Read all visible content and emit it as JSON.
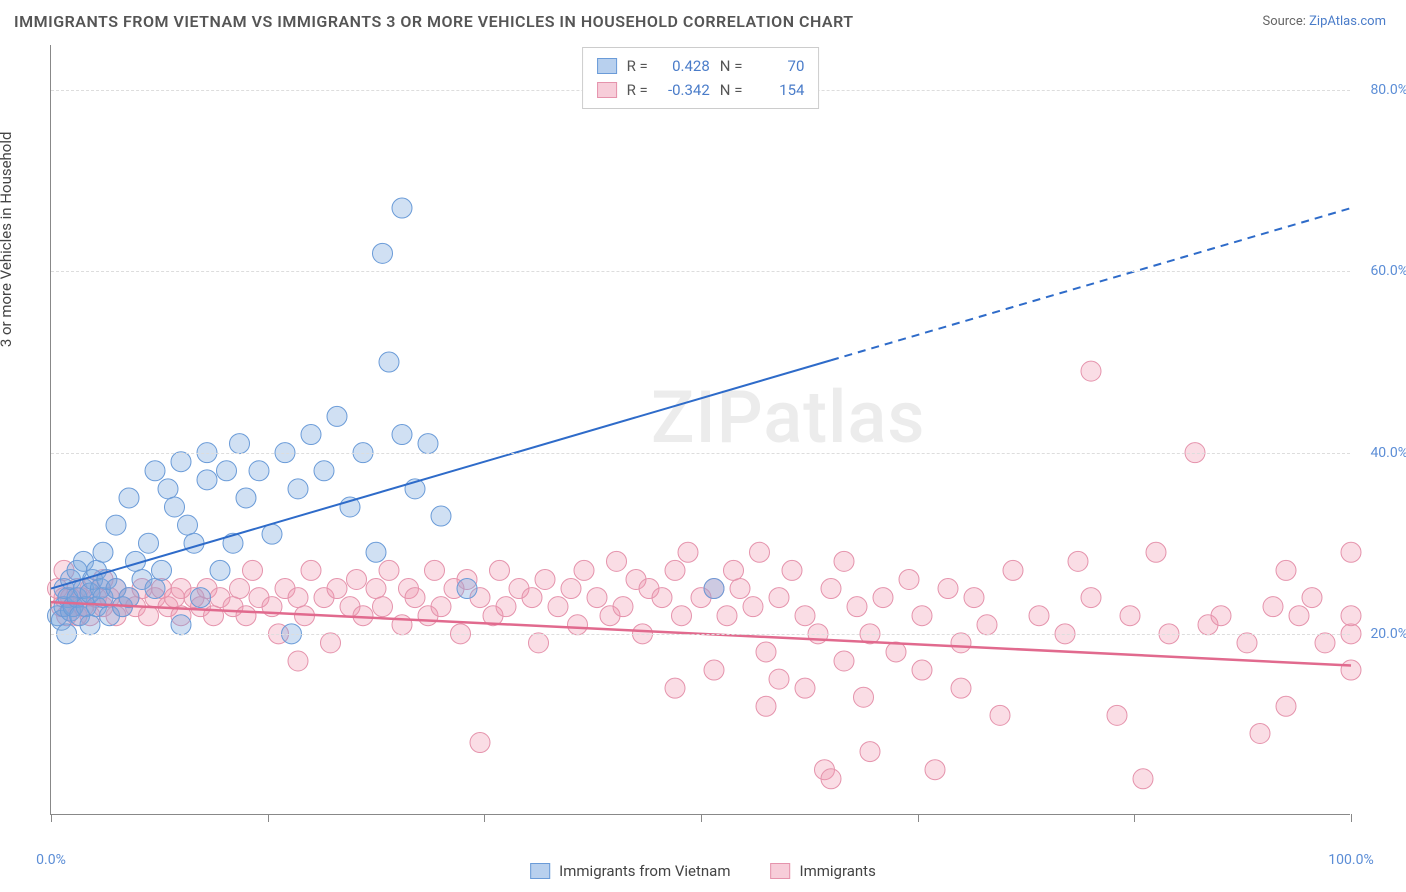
{
  "title": "IMMIGRANTS FROM VIETNAM VS IMMIGRANTS 3 OR MORE VEHICLES IN HOUSEHOLD CORRELATION CHART",
  "source_prefix": "Source: ",
  "source_name": "ZipAtlas.com",
  "y_axis_label": "3 or more Vehicles in Household",
  "watermark": "ZIPatlas",
  "chart": {
    "type": "scatter",
    "background_color": "#ffffff",
    "grid_color": "#dddddd",
    "axis_color": "#888888",
    "tick_label_color": "#5b8dd6",
    "tick_fontsize": 14,
    "title_fontsize": 16,
    "axis_label_fontsize": 15,
    "xlim": [
      0,
      100
    ],
    "ylim": [
      0,
      85
    ],
    "x_ticks": [
      0,
      16.67,
      33.33,
      50,
      66.67,
      83.33,
      100
    ],
    "x_tick_labels": [
      "0.0%",
      "",
      "",
      "",
      "",
      "",
      "100.0%"
    ],
    "y_ticks": [
      20,
      40,
      60,
      80
    ],
    "y_tick_labels": [
      "20.0%",
      "40.0%",
      "60.0%",
      "80.0%"
    ],
    "series": [
      {
        "name": "Immigrants from Vietnam",
        "color_fill": "rgba(120,165,220,0.35)",
        "color_stroke": "#6a9bd8",
        "swatch_fill": "#b8d0ee",
        "swatch_border": "#6a9bd8",
        "marker_radius": 10,
        "stats": {
          "R": "0.428",
          "N": "70"
        },
        "trend": {
          "color": "#2e6bc9",
          "width": 2,
          "y_intercept": 25,
          "slope": 0.42,
          "solid_until_x": 60
        },
        "points": [
          [
            0.5,
            22
          ],
          [
            0.8,
            21.5
          ],
          [
            1,
            23
          ],
          [
            1,
            25
          ],
          [
            1.2,
            20
          ],
          [
            1.3,
            24
          ],
          [
            1.5,
            22.5
          ],
          [
            1.5,
            26
          ],
          [
            1.7,
            23
          ],
          [
            2,
            24
          ],
          [
            2,
            27
          ],
          [
            2.2,
            22
          ],
          [
            2.5,
            25
          ],
          [
            2.5,
            28
          ],
          [
            2.7,
            23
          ],
          [
            3,
            24.5
          ],
          [
            3,
            21
          ],
          [
            3.2,
            26
          ],
          [
            3.5,
            23
          ],
          [
            3.5,
            27
          ],
          [
            3.8,
            25
          ],
          [
            4,
            24
          ],
          [
            4,
            29
          ],
          [
            4.3,
            26
          ],
          [
            4.5,
            22
          ],
          [
            5,
            25
          ],
          [
            5,
            32
          ],
          [
            5.5,
            23
          ],
          [
            6,
            24
          ],
          [
            6,
            35
          ],
          [
            6.5,
            28
          ],
          [
            7,
            26
          ],
          [
            7.5,
            30
          ],
          [
            8,
            25
          ],
          [
            8,
            38
          ],
          [
            8.5,
            27
          ],
          [
            9,
            36
          ],
          [
            9.5,
            34
          ],
          [
            10,
            21
          ],
          [
            10,
            39
          ],
          [
            10.5,
            32
          ],
          [
            11,
            30
          ],
          [
            11.5,
            24
          ],
          [
            12,
            37
          ],
          [
            12,
            40
          ],
          [
            13,
            27
          ],
          [
            13.5,
            38
          ],
          [
            14,
            30
          ],
          [
            14.5,
            41
          ],
          [
            15,
            35
          ],
          [
            16,
            38
          ],
          [
            17,
            31
          ],
          [
            18,
            40
          ],
          [
            18.5,
            20
          ],
          [
            19,
            36
          ],
          [
            20,
            42
          ],
          [
            21,
            38
          ],
          [
            22,
            44
          ],
          [
            23,
            34
          ],
          [
            24,
            40
          ],
          [
            25,
            29
          ],
          [
            25.5,
            62
          ],
          [
            26,
            50
          ],
          [
            27,
            42
          ],
          [
            27,
            67
          ],
          [
            28,
            36
          ],
          [
            29,
            41
          ],
          [
            30,
            33
          ],
          [
            51,
            25
          ],
          [
            32,
            25
          ]
        ]
      },
      {
        "name": "Immigrants",
        "color_fill": "rgba(240,150,175,0.32)",
        "color_stroke": "#e593ac",
        "swatch_fill": "#f7cdd9",
        "swatch_border": "#e593ac",
        "marker_radius": 10,
        "stats": {
          "R": "-0.342",
          "N": "154"
        },
        "trend": {
          "color": "#e16a8e",
          "width": 2.5,
          "y_intercept": 23.5,
          "slope": -0.07,
          "solid_until_x": 100
        },
        "points": [
          [
            0.5,
            25
          ],
          [
            0.8,
            23
          ],
          [
            1,
            24
          ],
          [
            1,
            27
          ],
          [
            1.2,
            22
          ],
          [
            1.5,
            24
          ],
          [
            1.7,
            23
          ],
          [
            2,
            25
          ],
          [
            2,
            22
          ],
          [
            2.3,
            24
          ],
          [
            2.5,
            23
          ],
          [
            3,
            25
          ],
          [
            3,
            22
          ],
          [
            3.5,
            24
          ],
          [
            4,
            23
          ],
          [
            4,
            26
          ],
          [
            4.5,
            24
          ],
          [
            5,
            22
          ],
          [
            5,
            25
          ],
          [
            5.5,
            23
          ],
          [
            6,
            24
          ],
          [
            6.5,
            23
          ],
          [
            7,
            25
          ],
          [
            7.5,
            22
          ],
          [
            8,
            24
          ],
          [
            8.5,
            25
          ],
          [
            9,
            23
          ],
          [
            9.5,
            24
          ],
          [
            10,
            22
          ],
          [
            10,
            25
          ],
          [
            11,
            24
          ],
          [
            11.5,
            23
          ],
          [
            12,
            25
          ],
          [
            12.5,
            22
          ],
          [
            13,
            24
          ],
          [
            14,
            23
          ],
          [
            14.5,
            25
          ],
          [
            15,
            22
          ],
          [
            15.5,
            27
          ],
          [
            16,
            24
          ],
          [
            17,
            23
          ],
          [
            17.5,
            20
          ],
          [
            18,
            25
          ],
          [
            19,
            24
          ],
          [
            19.5,
            22
          ],
          [
            20,
            27
          ],
          [
            21,
            24
          ],
          [
            21.5,
            19
          ],
          [
            22,
            25
          ],
          [
            23,
            23
          ],
          [
            23.5,
            26
          ],
          [
            24,
            22
          ],
          [
            25,
            25
          ],
          [
            25.5,
            23
          ],
          [
            26,
            27
          ],
          [
            27,
            21
          ],
          [
            27.5,
            25
          ],
          [
            28,
            24
          ],
          [
            29,
            22
          ],
          [
            29.5,
            27
          ],
          [
            30,
            23
          ],
          [
            31,
            25
          ],
          [
            31.5,
            20
          ],
          [
            32,
            26
          ],
          [
            33,
            24
          ],
          [
            33,
            8
          ],
          [
            34,
            22
          ],
          [
            34.5,
            27
          ],
          [
            35,
            23
          ],
          [
            36,
            25
          ],
          [
            37,
            24
          ],
          [
            37.5,
            19
          ],
          [
            38,
            26
          ],
          [
            39,
            23
          ],
          [
            40,
            25
          ],
          [
            40.5,
            21
          ],
          [
            41,
            27
          ],
          [
            42,
            24
          ],
          [
            43,
            22
          ],
          [
            43.5,
            28
          ],
          [
            44,
            23
          ],
          [
            45,
            26
          ],
          [
            45.5,
            20
          ],
          [
            46,
            25
          ],
          [
            47,
            24
          ],
          [
            48,
            27
          ],
          [
            48.5,
            22
          ],
          [
            49,
            29
          ],
          [
            50,
            24
          ],
          [
            51,
            25
          ],
          [
            52,
            22
          ],
          [
            52.5,
            27
          ],
          [
            53,
            25
          ],
          [
            54,
            23
          ],
          [
            54.5,
            29
          ],
          [
            55,
            18
          ],
          [
            56,
            24
          ],
          [
            56,
            15
          ],
          [
            57,
            27
          ],
          [
            58,
            22
          ],
          [
            58,
            14
          ],
          [
            59,
            20
          ],
          [
            59.5,
            5
          ],
          [
            60,
            25
          ],
          [
            60,
            4
          ],
          [
            61,
            17
          ],
          [
            61,
            28
          ],
          [
            62,
            23
          ],
          [
            62.5,
            13
          ],
          [
            63,
            7
          ],
          [
            64,
            24
          ],
          [
            65,
            18
          ],
          [
            66,
            26
          ],
          [
            67,
            22
          ],
          [
            68,
            5
          ],
          [
            69,
            25
          ],
          [
            70,
            19
          ],
          [
            71,
            24
          ],
          [
            72,
            21
          ],
          [
            74,
            27
          ],
          [
            76,
            22
          ],
          [
            78,
            20
          ],
          [
            79,
            28
          ],
          [
            80,
            49
          ],
          [
            80,
            24
          ],
          [
            82,
            11
          ],
          [
            83,
            22
          ],
          [
            84,
            4
          ],
          [
            85,
            29
          ],
          [
            86,
            20
          ],
          [
            88,
            40
          ],
          [
            89,
            21
          ],
          [
            90,
            22
          ],
          [
            92,
            19
          ],
          [
            93,
            9
          ],
          [
            94,
            23
          ],
          [
            95,
            27
          ],
          [
            95,
            12
          ],
          [
            96,
            22
          ],
          [
            97,
            24
          ],
          [
            98,
            19
          ],
          [
            100,
            20
          ],
          [
            100,
            29
          ],
          [
            100,
            22
          ],
          [
            100,
            16
          ],
          [
            55,
            12
          ],
          [
            48,
            14
          ],
          [
            51,
            16
          ],
          [
            63,
            20
          ],
          [
            67,
            16
          ],
          [
            70,
            14
          ],
          [
            73,
            11
          ],
          [
            19,
            17
          ]
        ]
      }
    ]
  },
  "legend": {
    "items": [
      {
        "label": "Immigrants from Vietnam",
        "swatch_fill": "#b8d0ee",
        "swatch_border": "#6a9bd8"
      },
      {
        "label": "Immigrants",
        "swatch_fill": "#f7cdd9",
        "swatch_border": "#e593ac"
      }
    ]
  }
}
